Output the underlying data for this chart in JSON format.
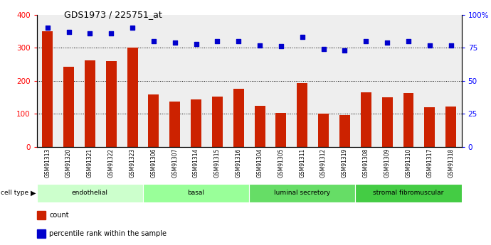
{
  "title": "GDS1973 / 225751_at",
  "samples": [
    "GSM91313",
    "GSM91320",
    "GSM91321",
    "GSM91322",
    "GSM91323",
    "GSM91306",
    "GSM91307",
    "GSM91314",
    "GSM91315",
    "GSM91316",
    "GSM91304",
    "GSM91305",
    "GSM91311",
    "GSM91312",
    "GSM91319",
    "GSM91308",
    "GSM91309",
    "GSM91310",
    "GSM91317",
    "GSM91318"
  ],
  "counts": [
    350,
    243,
    262,
    260,
    300,
    159,
    138,
    143,
    152,
    177,
    125,
    104,
    193,
    101,
    97,
    165,
    150,
    164,
    120,
    122
  ],
  "percentile_ranks": [
    90,
    87,
    86,
    86,
    90,
    80,
    79,
    78,
    80,
    80,
    77,
    76,
    83,
    74,
    73,
    80,
    79,
    80,
    77,
    77
  ],
  "cell_types": [
    {
      "label": "endothelial",
      "start": 0,
      "end": 5
    },
    {
      "label": "basal",
      "start": 5,
      "end": 10
    },
    {
      "label": "luminal secretory",
      "start": 10,
      "end": 15
    },
    {
      "label": "stromal fibromuscular",
      "start": 15,
      "end": 20
    }
  ],
  "cell_type_colors": [
    "#ccffcc",
    "#99ff99",
    "#66dd66",
    "#44cc44"
  ],
  "bar_color": "#cc2200",
  "scatter_color": "#0000cc",
  "ylim_left": [
    0,
    400
  ],
  "ylim_right": [
    0,
    100
  ],
  "yticks_left": [
    0,
    100,
    200,
    300,
    400
  ],
  "yticks_right": [
    0,
    25,
    50,
    75,
    100
  ],
  "ytick_labels_right": [
    "0",
    "25",
    "50",
    "75",
    "100%"
  ],
  "grid_values": [
    100,
    200,
    300
  ],
  "plot_bg": "#eeeeee"
}
